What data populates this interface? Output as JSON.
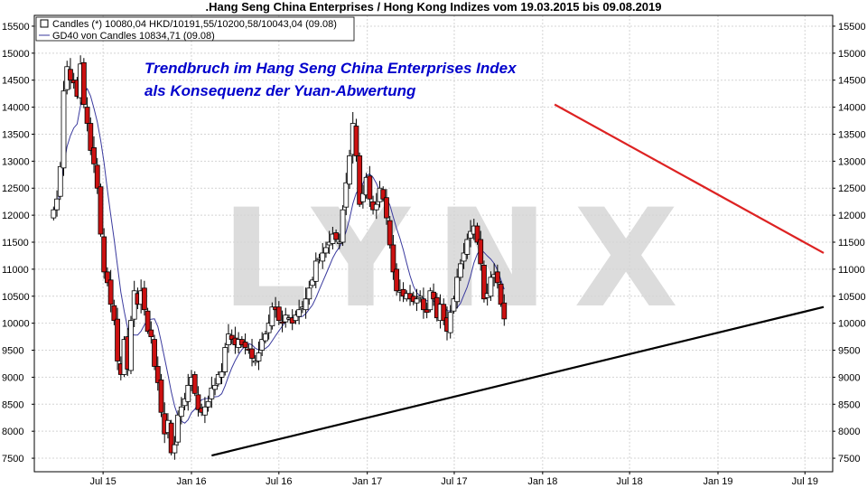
{
  "title": ".Hang Seng China Enterprises / Hong Kong Indizes vom 19.03.2015 bis 09.08.2019",
  "chart_data": {
    "type": "candlestick",
    "ylim": [
      7250,
      15700
    ],
    "y_ticks": [
      7500,
      8000,
      8500,
      9000,
      9500,
      10000,
      10500,
      11000,
      11500,
      12000,
      12500,
      13000,
      13500,
      14000,
      14500,
      15000,
      15500
    ],
    "x_ticks": [
      "Jul 15",
      "Jan 16",
      "Jul 16",
      "Jan 17",
      "Jul 17",
      "Jan 18",
      "Jul 18",
      "Jan 19",
      "Jul 19"
    ],
    "grid": true,
    "watermark": "LYNX",
    "headline": [
      "Trendbruch im Hang Seng China Enterprises Index",
      "als Konsequenz der Yuan-Abwertung"
    ],
    "legend": [
      {
        "label": "Candles (*) 10080,04 HKD/10191,55/10200,58/10043,04 (09.08)",
        "symbol": "square"
      },
      {
        "label": "GD40 von Candles 10834,71 (09.08)",
        "symbol": "line"
      }
    ],
    "candles_weekly_close": [
      12100,
      12300,
      12900,
      14300,
      14750,
      14500,
      14450,
      14200,
      14800,
      14050,
      13700,
      13200,
      12950,
      12500,
      11650,
      10950,
      10750,
      10350,
      10050,
      9300,
      9050,
      9700,
      9150,
      10050,
      10600,
      10350,
      10600,
      10250,
      9850,
      9750,
      9200,
      8900,
      8350,
      7950,
      8200,
      7600,
      7750,
      8300,
      8450,
      8600,
      8850,
      9000,
      8700,
      8400,
      8350,
      8450,
      8550,
      8800,
      8850,
      9050,
      9100,
      9550,
      9800,
      9700,
      9600,
      9700,
      9600,
      9550,
      9500,
      9350,
      9300,
      9450,
      9700,
      9800,
      10000,
      10300,
      10250,
      10050,
      10000,
      10150,
      10100,
      10000,
      10150,
      10250,
      10300,
      10450,
      10650,
      10800,
      11150,
      11200,
      11300,
      11400,
      11500,
      11650,
      11550,
      11500,
      12100,
      12600,
      13100,
      13700,
      13100,
      12200,
      12400,
      12700,
      12300,
      12100,
      12200,
      12500,
      12300,
      11950,
      11450,
      10950,
      10600,
      10600,
      10500,
      10550,
      10450,
      10400,
      10450,
      10500,
      10250,
      10200,
      10600,
      10450,
      10100,
      10350,
      10050,
      9850,
      10200,
      10450,
      10850,
      11100,
      11300,
      11550,
      11700,
      11800,
      11500,
      11100,
      10450,
      10550,
      10850,
      10900,
      10750,
      10350,
      10080
    ],
    "trend_lines": [
      {
        "color": "#dd2222",
        "from": {
          "x": "2018-01-26",
          "y": 14050
        },
        "to": {
          "x": "2019-08-09",
          "y": 11300
        }
      },
      {
        "color": "#000000",
        "from": {
          "x": "2016-02-12",
          "y": 7550
        },
        "to": {
          "x": "2019-08-09",
          "y": 10300
        }
      }
    ],
    "ma_color": "#3a3a9e",
    "up_color": "#ffffff",
    "down_color": "#cc1111"
  }
}
